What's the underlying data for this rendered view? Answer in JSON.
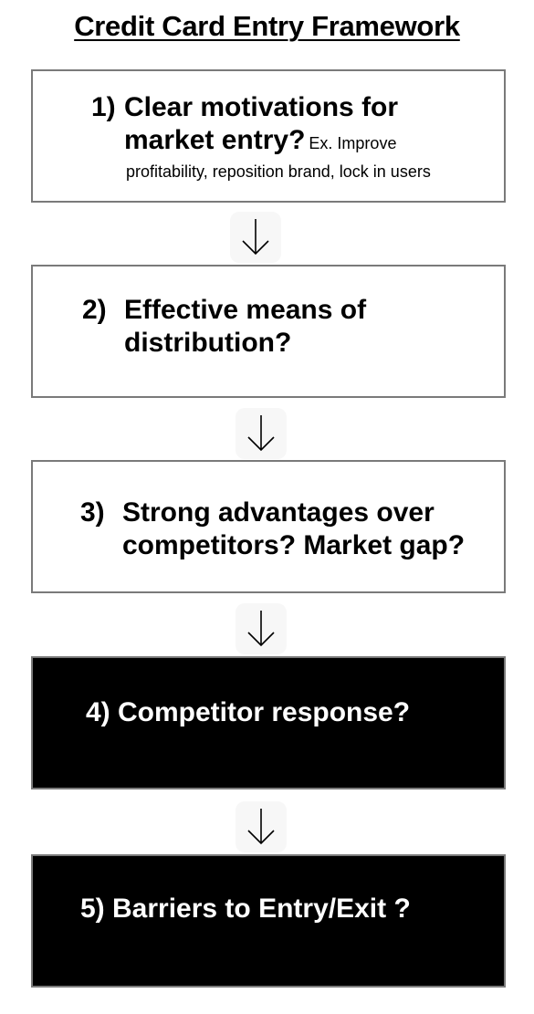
{
  "title": "Credit Card Entry Framework",
  "steps": [
    {
      "number": "1)",
      "question_line1": "Clear motivations for",
      "question_line2": "market entry?",
      "example_line1": "Ex. Improve",
      "example_line2": "profitability, reposition brand, lock in users"
    },
    {
      "number": "2)",
      "question_line1": "Effective means of",
      "question_line2": "distribution?"
    },
    {
      "number": "3)",
      "question_line1": "Strong advantages over",
      "question_line2": "competitors? Market gap?"
    },
    {
      "text": "4) Competitor response?"
    },
    {
      "text": "5) Barriers to Entry/Exit ?"
    }
  ],
  "arrow_icon": "arrow-down-icon",
  "colors": {
    "box_border": "#7a7a7a",
    "dark_box_fill": "#000000",
    "dark_box_text": "#ffffff",
    "arrow_background": "#f7f7f7"
  }
}
